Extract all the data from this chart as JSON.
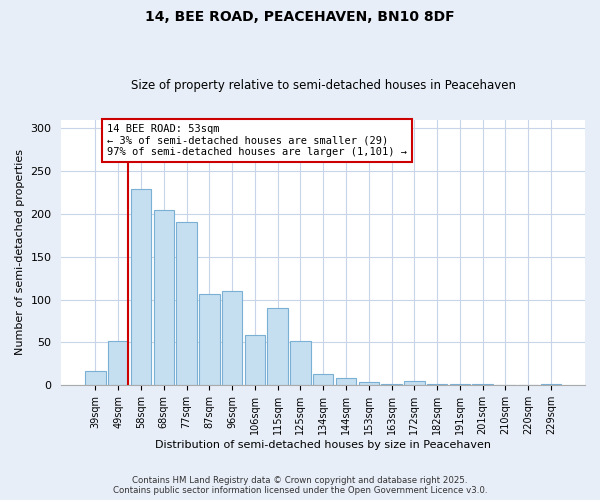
{
  "title": "14, BEE ROAD, PEACEHAVEN, BN10 8DF",
  "subtitle": "Size of property relative to semi-detached houses in Peacehaven",
  "xlabel": "Distribution of semi-detached houses by size in Peacehaven",
  "ylabel": "Number of semi-detached properties",
  "bar_labels": [
    "39sqm",
    "49sqm",
    "58sqm",
    "68sqm",
    "77sqm",
    "87sqm",
    "96sqm",
    "106sqm",
    "115sqm",
    "125sqm",
    "134sqm",
    "144sqm",
    "153sqm",
    "163sqm",
    "172sqm",
    "182sqm",
    "191sqm",
    "201sqm",
    "210sqm",
    "220sqm",
    "229sqm"
  ],
  "bar_values": [
    17,
    52,
    229,
    205,
    191,
    107,
    110,
    59,
    90,
    52,
    13,
    9,
    4,
    2,
    5,
    1,
    1,
    1,
    0,
    0,
    2
  ],
  "bar_color": "#c6dff0",
  "bar_edge_color": "#7ab0d4",
  "vline_color": "#cc0000",
  "ylim": [
    0,
    310
  ],
  "yticks": [
    0,
    50,
    100,
    150,
    200,
    250,
    300
  ],
  "annotation_title": "14 BEE ROAD: 53sqm",
  "annotation_line1": "← 3% of semi-detached houses are smaller (29)",
  "annotation_line2": "97% of semi-detached houses are larger (1,101) →",
  "annotation_box_color": "#ffffff",
  "annotation_box_edge_color": "#cc0000",
  "footer_line1": "Contains HM Land Registry data © Crown copyright and database right 2025.",
  "footer_line2": "Contains public sector information licensed under the Open Government Licence v3.0.",
  "background_color": "#e8eef8",
  "plot_bg_color": "#ffffff",
  "grid_color": "#c8d4e8"
}
